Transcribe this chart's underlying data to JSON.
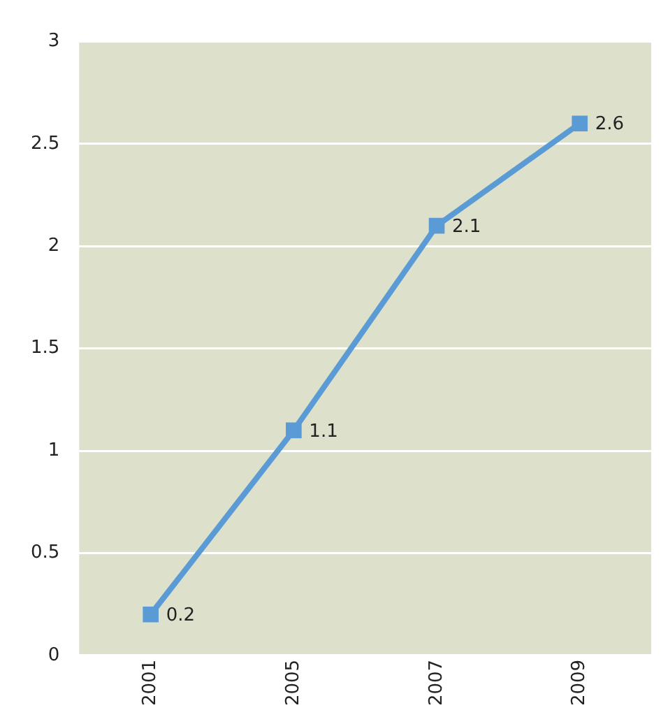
{
  "chart_data": {
    "type": "line",
    "categories": [
      "2001",
      "2005",
      "2007",
      "2009"
    ],
    "series": [
      {
        "color": "#5b9bd5",
        "values": [
          0.2,
          1.1,
          2.1,
          2.6
        ]
      }
    ],
    "ylim": [
      0,
      3
    ],
    "yticks": [
      0,
      0.5,
      1,
      1.5,
      2,
      2.5,
      3
    ],
    "grid": "y",
    "marker": "square",
    "line_style": "solid",
    "data_labels": true
  }
}
